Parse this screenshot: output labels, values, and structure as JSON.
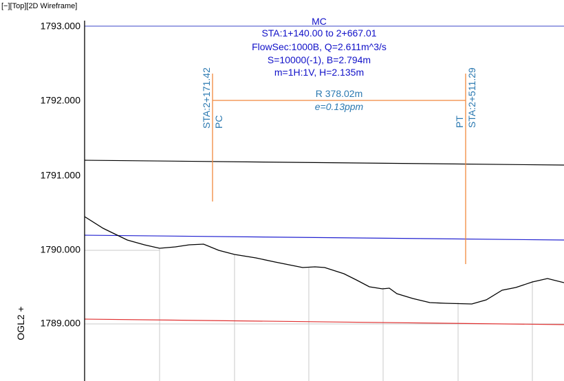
{
  "viewport": {
    "label": "[−][Top][2D Wireframe]"
  },
  "axis": {
    "y_ticks": [
      "1793.000",
      "1792.000",
      "1791.000",
      "1790.000",
      "1789.000"
    ],
    "side_label": "OGL2 +"
  },
  "channel_box": {
    "title": "MC",
    "line1": "STA:1+140.00 to 2+667.01",
    "line2": "FlowSec:1000B, Q=2.611m^3/s",
    "line3": "S=10000(-1), B=2.794m",
    "line4": "m=1H:1V, H=2.135m"
  },
  "curve": {
    "radius": "R 378.02m",
    "superelevation": "e=0.13ppm",
    "pc_station": "STA:2+171.42",
    "pc_label": "PC",
    "pt_station": "STA:2+511.29",
    "pt_label": "PT"
  },
  "colors": {
    "top_line": "#3a46c8",
    "water_line": "#2020d0",
    "red_line": "#e03030",
    "curve_line": "#f0883c",
    "ground_line": "#000000",
    "grid": "#c8c8c8",
    "label_blue": "#1010c8",
    "label_teal": "#2a78b0"
  }
}
